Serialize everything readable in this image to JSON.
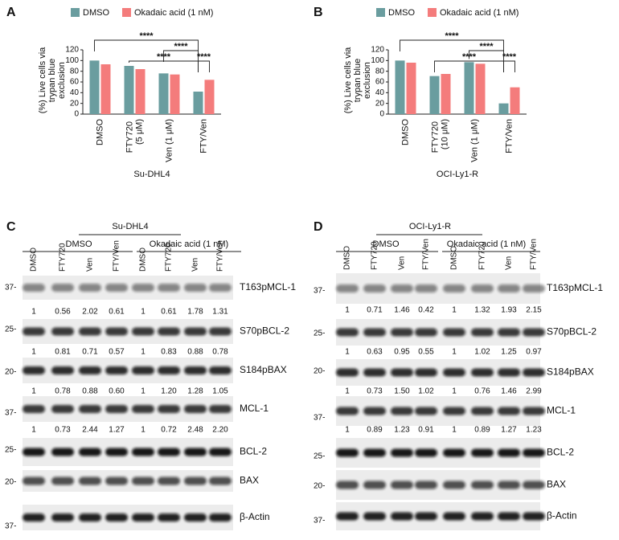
{
  "panels": [
    "A",
    "B",
    "C",
    "D"
  ],
  "chart_data": [
    {
      "type": "bar",
      "ylabel": [
        "(%) Live cells via",
        "trypan blue",
        "exclusion"
      ],
      "xlabel": "Su-DHL4",
      "categories": [
        "DMSO",
        "FTY720 (5 μM)",
        "Ven (1 μM)",
        "FTY/Ven"
      ],
      "series": [
        {
          "name": "DMSO",
          "color": "#6a9d9f",
          "values": [
            100,
            90,
            76,
            42
          ]
        },
        {
          "name": "Okadaic acid (1 nM)",
          "color": "#f47c7c",
          "values": [
            93,
            84,
            74,
            64
          ]
        }
      ],
      "ylim": [
        0,
        120
      ],
      "yticks": [
        0,
        20,
        40,
        60,
        80,
        100,
        120
      ],
      "significance": [
        "****",
        "****",
        "****",
        "****"
      ]
    },
    {
      "type": "bar",
      "ylabel": [
        "(%) Live cells via",
        "trypan blue",
        "exclusion"
      ],
      "xlabel": "OCI-Ly1-R",
      "categories": [
        "DMSO",
        "FTY720 (10 μM)",
        "Ven (1 μM)",
        "FTY/Ven"
      ],
      "series": [
        {
          "name": "DMSO",
          "color": "#6a9d9f",
          "values": [
            100,
            71,
            97,
            20
          ]
        },
        {
          "name": "Okadaic acid (1 nM)",
          "color": "#f47c7c",
          "values": [
            96,
            75,
            94,
            50
          ]
        }
      ],
      "ylim": [
        0,
        120
      ],
      "yticks": [
        0,
        20,
        40,
        60,
        80,
        100,
        120
      ],
      "significance": [
        "****",
        "****",
        "****",
        "****"
      ]
    }
  ],
  "blots": [
    {
      "title": "Su-DHL4",
      "groups": [
        "DMSO",
        "Okadaic acid (1 nM)"
      ],
      "lanes": [
        "DMSO",
        "FTY720",
        "Ven",
        "FTY/Ven",
        "DMSO",
        "FTY720",
        "Ven",
        "FTY/Ven"
      ],
      "markers": [
        "37-",
        "25-",
        "20-",
        "37-",
        "25-",
        "20-",
        "37-"
      ],
      "proteins": [
        "T163pMCL-1",
        "S70pBCL-2",
        "S184pBAX",
        "MCL-1",
        "BCL-2",
        "BAX",
        "β-Actin"
      ],
      "quantification": [
        [
          "1",
          "0.56",
          "2.02",
          "0.61",
          "1",
          "0.61",
          "1.78",
          "1.31"
        ],
        [
          "1",
          "0.81",
          "0.71",
          "0.57",
          "1",
          "0.83",
          "0.88",
          "0.78"
        ],
        [
          "1",
          "0.78",
          "0.88",
          "0.60",
          "1",
          "1.20",
          "1.28",
          "1.05"
        ],
        [
          "1",
          "0.73",
          "2.44",
          "1.27",
          "1",
          "0.72",
          "2.48",
          "2.20"
        ]
      ]
    },
    {
      "title": "OCI-Ly1-R",
      "groups": [
        "DMSO",
        "Okadaic acid (1 nM)"
      ],
      "lanes": [
        "DMSO",
        "FTY720",
        "Ven",
        "FTY/Ven",
        "DMSO",
        "FTY720",
        "Ven",
        "FTY/Ven"
      ],
      "markers": [
        "37-",
        "25-",
        "20-",
        "37-",
        "25-",
        "20-",
        "37-"
      ],
      "proteins": [
        "T163pMCL-1",
        "S70pBCL-2",
        "S184pBAX",
        "MCL-1",
        "BCL-2",
        "BAX",
        "β-Actin"
      ],
      "quantification": [
        [
          "1",
          "0.71",
          "1.46",
          "0.42",
          "1",
          "1.32",
          "1.93",
          "2.15"
        ],
        [
          "1",
          "0.63",
          "0.95",
          "0.55",
          "1",
          "1.02",
          "1.25",
          "0.97"
        ],
        [
          "1",
          "0.73",
          "1.50",
          "1.02",
          "1",
          "0.76",
          "1.46",
          "2.99"
        ],
        [
          "1",
          "0.89",
          "1.23",
          "0.91",
          "1",
          "0.89",
          "1.27",
          "1.23"
        ]
      ]
    }
  ]
}
